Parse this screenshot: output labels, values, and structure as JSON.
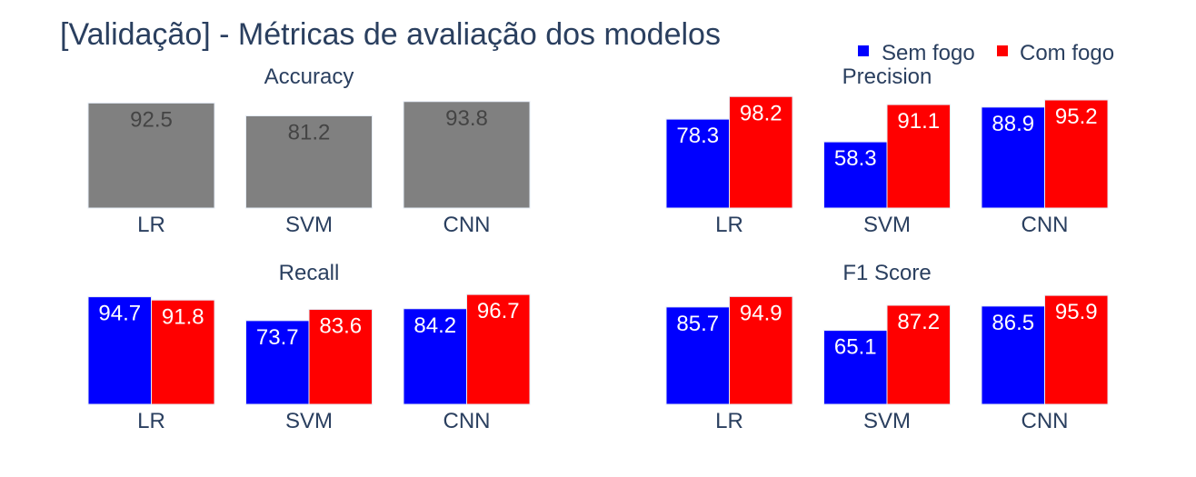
{
  "title": "[Validação] - Métricas de avaliação dos modelos",
  "legend": {
    "placement": "top-right",
    "items": [
      {
        "label": "Sem fogo",
        "color": "#0000ff"
      },
      {
        "label": "Com fogo",
        "color": "#ff0000"
      }
    ]
  },
  "colors": {
    "single": "#808080",
    "single_label": "#444444",
    "series_label": "#ffffff",
    "tick": "#2a3f5f",
    "bar_border": "#e5ecf6"
  },
  "chart_data": [
    {
      "type": "bar",
      "title": "Accuracy",
      "categories": [
        "LR",
        "SVM",
        "CNN"
      ],
      "series": [
        {
          "values": [
            92.5,
            81.2,
            93.8
          ]
        }
      ],
      "value_labels": [
        "92.5",
        "81.2",
        "93.8"
      ],
      "ylim": [
        0,
        100
      ]
    },
    {
      "type": "bar",
      "title": "Precision",
      "categories": [
        "LR",
        "SVM",
        "CNN"
      ],
      "series": [
        {
          "name": "Sem fogo",
          "values": [
            78.3,
            58.3,
            88.9
          ],
          "value_labels": [
            "78.3",
            "58.3",
            "88.9"
          ]
        },
        {
          "name": "Com fogo",
          "values": [
            98.2,
            91.1,
            95.2
          ],
          "value_labels": [
            "98.2",
            "91.1",
            "95.2"
          ]
        }
      ],
      "ylim": [
        0,
        100
      ]
    },
    {
      "type": "bar",
      "title": "Recall",
      "categories": [
        "LR",
        "SVM",
        "CNN"
      ],
      "series": [
        {
          "name": "Sem fogo",
          "values": [
            94.7,
            73.7,
            84.2
          ],
          "value_labels": [
            "94.7",
            "73.7",
            "84.2"
          ]
        },
        {
          "name": "Com fogo",
          "values": [
            91.8,
            83.6,
            96.7
          ],
          "value_labels": [
            "91.8",
            "83.6",
            "96.7"
          ]
        }
      ],
      "ylim": [
        0,
        100
      ]
    },
    {
      "type": "bar",
      "title": "F1 Score",
      "categories": [
        "LR",
        "SVM",
        "CNN"
      ],
      "series": [
        {
          "name": "Sem fogo",
          "values": [
            85.7,
            65.1,
            86.5
          ],
          "value_labels": [
            "85.7",
            "65.1",
            "86.5"
          ]
        },
        {
          "name": "Com fogo",
          "values": [
            94.9,
            87.2,
            95.9
          ],
          "value_labels": [
            "94.9",
            "87.2",
            "95.9"
          ]
        }
      ],
      "ylim": [
        0,
        100
      ]
    }
  ]
}
